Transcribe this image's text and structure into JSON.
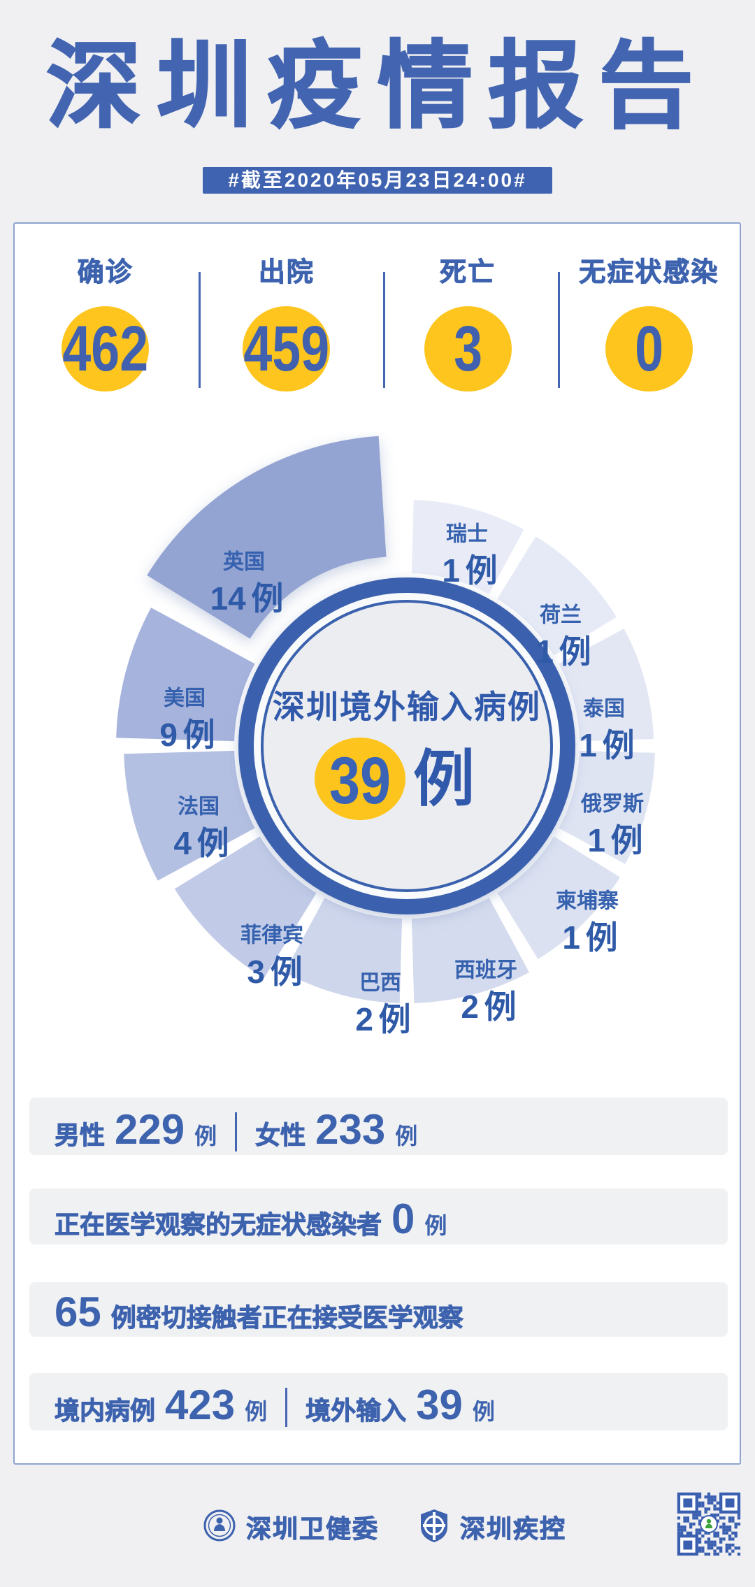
{
  "page": {
    "title": "深圳疫情报告",
    "date_badge": "#截至2020年05月23日24:00#"
  },
  "summary": {
    "items": [
      {
        "label": "确诊",
        "value": "462"
      },
      {
        "label": "出院",
        "value": "459"
      },
      {
        "label": "死亡",
        "value": "3"
      },
      {
        "label": "无症状感染",
        "value": "0"
      }
    ]
  },
  "chart_data": {
    "type": "pie",
    "variant": "nightingale-rose-donut",
    "title": "深圳境外输入病例",
    "total": "39",
    "unit": "例",
    "legend_position": "labels-on-slices",
    "accent_yellow": "#FCC41C",
    "accent_blue": "#3A61AD",
    "slices": [
      {
        "name": "瑞士",
        "value": 1,
        "color": "#E9ECF7"
      },
      {
        "name": "荷兰",
        "value": 1,
        "color": "#E6EAF6"
      },
      {
        "name": "泰国",
        "value": 1,
        "color": "#E3E7F4"
      },
      {
        "name": "俄罗斯",
        "value": 1,
        "color": "#DFE4F3"
      },
      {
        "name": "柬埔寨",
        "value": 1,
        "color": "#DBE1F1"
      },
      {
        "name": "西班牙",
        "value": 2,
        "color": "#D4DBEE"
      },
      {
        "name": "巴西",
        "value": 2,
        "color": "#CED6EC"
      },
      {
        "name": "菲律宾",
        "value": 3,
        "color": "#C1CBE7"
      },
      {
        "name": "法国",
        "value": 4,
        "color": "#B4C0E2"
      },
      {
        "name": "美国",
        "value": 9,
        "color": "#A6B3DC"
      },
      {
        "name": "英国",
        "value": 14,
        "color": "#93A4D3"
      }
    ]
  },
  "rows": {
    "gender": {
      "label1": "男性",
      "value1": "229",
      "unit1": "例",
      "label2": "女性",
      "value2": "233",
      "unit2": "例"
    },
    "asymptomatic": {
      "label": "正在医学观察的无症状感染者",
      "value": "0",
      "unit": "例"
    },
    "contacts": {
      "value": "65",
      "label": "例密切接触者正在接受医学观察"
    },
    "origin": {
      "label1": "境内病例",
      "value1": "423",
      "unit1": "例",
      "label2": "境外输入",
      "value2": "39",
      "unit2": "例"
    }
  },
  "footer": {
    "org1": "深圳卫健委",
    "org2": "深圳疾控"
  }
}
